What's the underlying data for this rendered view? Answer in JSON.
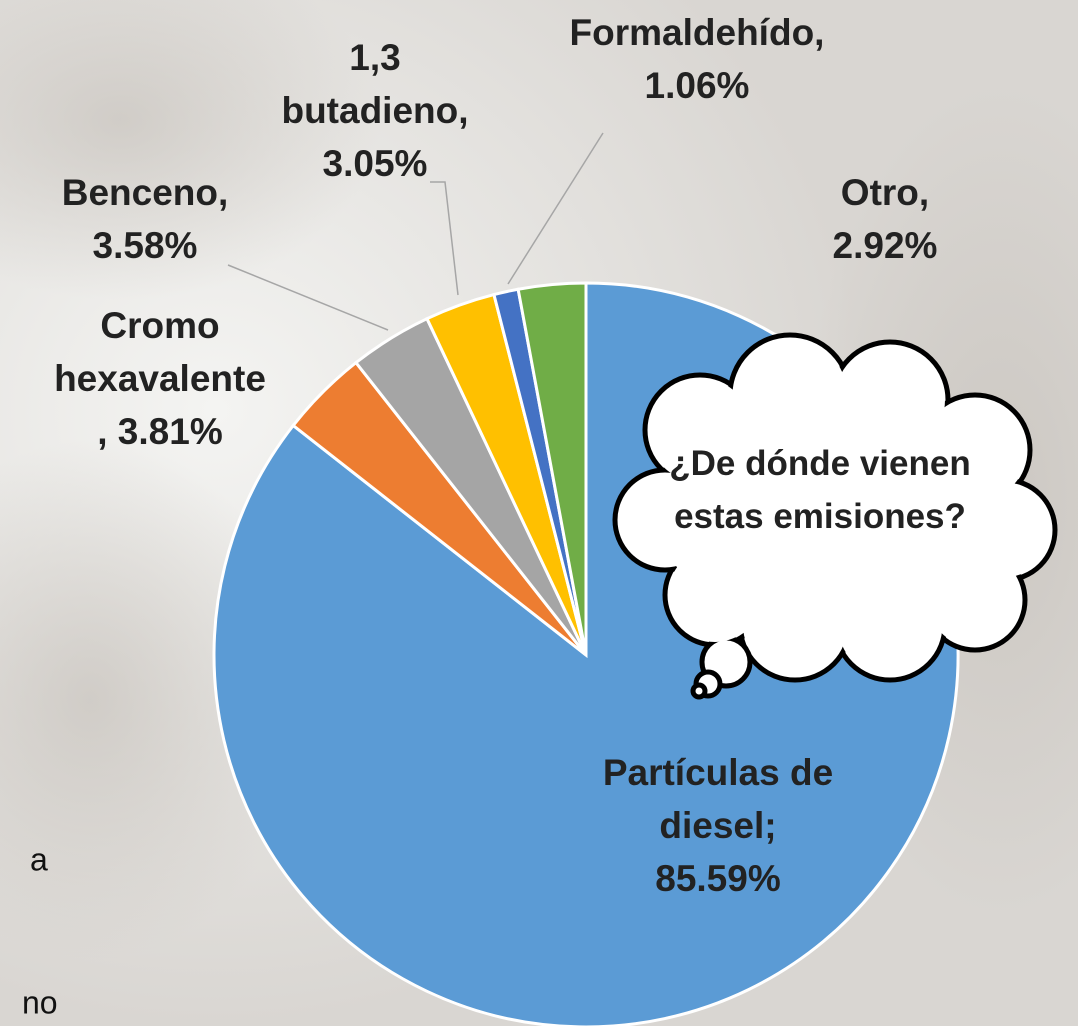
{
  "chart_data": {
    "type": "pie",
    "values": [
      85.59,
      3.81,
      3.58,
      3.05,
      1.06,
      2.92
    ],
    "value_labels": [
      "Partículas de diesel; 85.59%",
      "Cromo hexavalente , 3.81%",
      "Benceno, 3.58%",
      "1,3 butadieno, 3.05%",
      "Formaldehído, 1.06%",
      "Otro, 2.92%"
    ],
    "colors": [
      "#5b9bd5",
      "#ed7d31",
      "#a5a5a5",
      "#ffc000",
      "#4472c4",
      "#70ad47"
    ],
    "annotation": "¿De dónde vienen estas emisiones?"
  },
  "background_text": [
    "a",
    "no"
  ]
}
